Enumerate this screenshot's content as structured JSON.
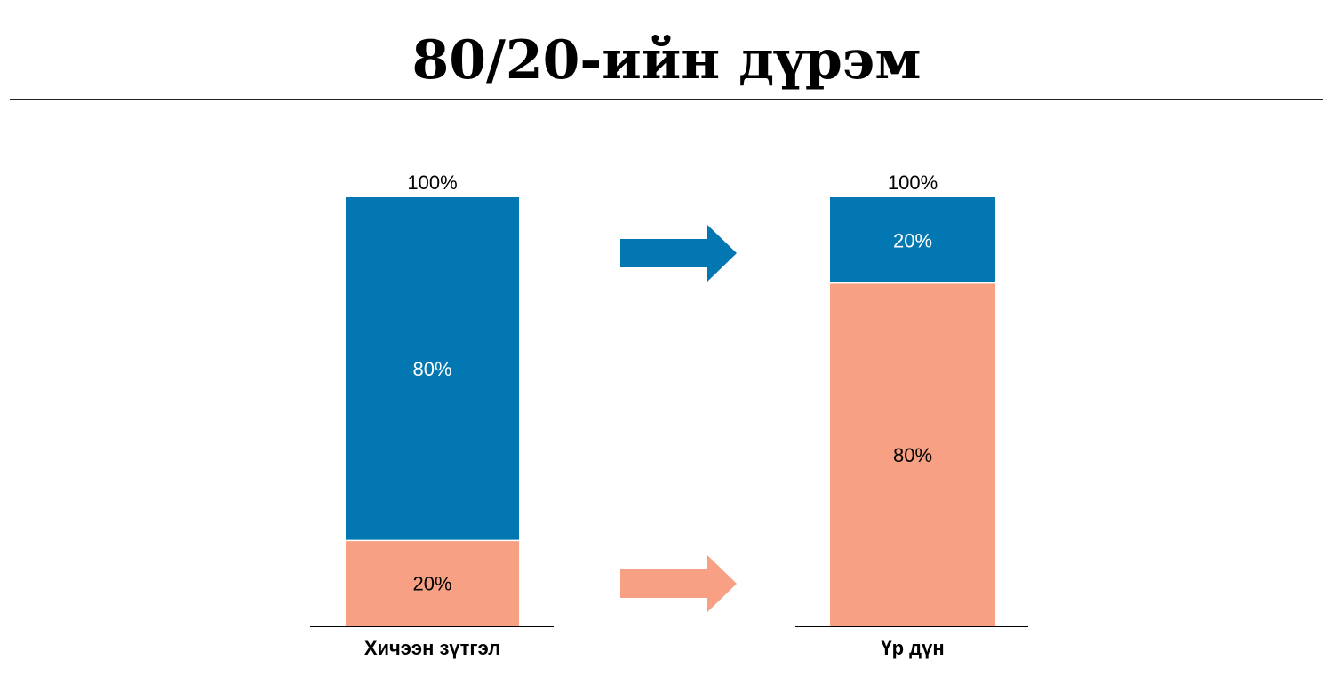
{
  "title": "80/20-ийн дүрэм",
  "colors": {
    "effort_output_major": "#0277B1",
    "minor": "#F7A083",
    "dark_text": "#000000",
    "light_text": "#FFFFFF"
  },
  "chart_data": {
    "type": "bar",
    "stacked": true,
    "categories": [
      "Хичээн зүтгэл",
      "Үр дүн"
    ],
    "series": [
      {
        "values": [
          20,
          80
        ],
        "labels": [
          "20%",
          "80%"
        ],
        "color": "#F7A083"
      },
      {
        "values": [
          80,
          20
        ],
        "labels": [
          "80%",
          "20%"
        ],
        "color": "#0277B1"
      }
    ],
    "totals": [
      "100%",
      "100%"
    ],
    "ylim": [
      0,
      100
    ],
    "grid": false,
    "legend": "none",
    "arrows": [
      {
        "color": "#0277B1",
        "icon": "arrow-right-icon"
      },
      {
        "color": "#F7A083",
        "icon": "arrow-right-icon"
      }
    ]
  }
}
